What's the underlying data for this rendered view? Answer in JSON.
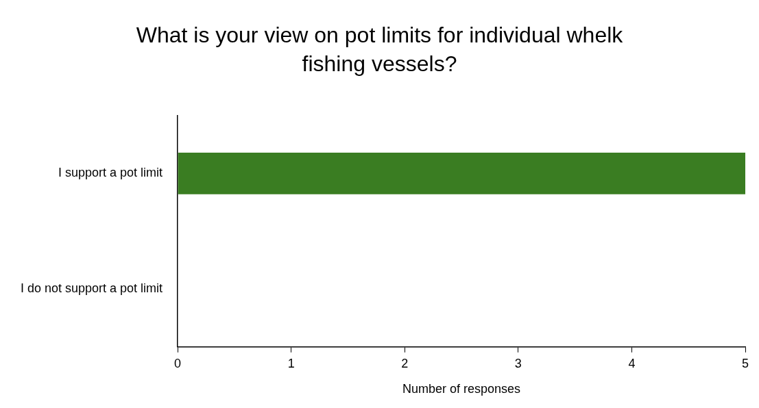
{
  "chart_data": {
    "type": "bar",
    "orientation": "horizontal",
    "title": "What is your view on pot limits for individual whelk fishing vessels?",
    "categories": [
      "I support a pot limit",
      "I do not support a pot limit"
    ],
    "values": [
      5,
      0
    ],
    "color": "#3a7d22",
    "xlabel": "Number of responses",
    "xlim": [
      0,
      5
    ],
    "xticks": [
      0,
      1,
      2,
      3,
      4,
      5
    ],
    "grid": false,
    "legend": false
  }
}
